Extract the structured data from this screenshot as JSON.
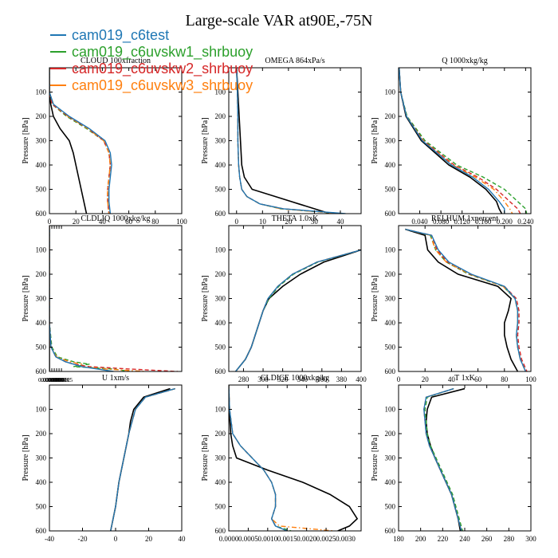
{
  "figure": {
    "title": "Large-scale VAR at90E,-75N",
    "legend": [
      {
        "label": "cam019_c6test",
        "color": "#1f77b4",
        "dash": "solid"
      },
      {
        "label": "cam019_c6uvskw1_shrbuoy",
        "color": "#2ca02c",
        "dash": "dashed"
      },
      {
        "label": "cam019_c6uvskw2_shrbuoy",
        "color": "#d62728",
        "dash": "dashed"
      },
      {
        "label": "cam019_c6uvskw3_shrbuoy",
        "color": "#ff7f0e",
        "dash": "dashdot"
      }
    ],
    "reference_color": "#000000"
  },
  "chart_data": [
    {
      "type": "line",
      "title": "CLOUD 100xfraction",
      "ylabel": "Pressure [hPa]",
      "xlim": [
        0,
        100
      ],
      "ylim": [
        600,
        0
      ],
      "yticks": [
        100,
        200,
        300,
        400,
        500,
        600
      ],
      "xticks": [
        "0",
        "20",
        "40",
        "60",
        "80",
        "100"
      ],
      "pressure": [
        0,
        100,
        150,
        200,
        250,
        300,
        350,
        400,
        450,
        500,
        550,
        600
      ],
      "series": [
        {
          "name": "cam019_c6test",
          "values": [
            0,
            0,
            3,
            15,
            30,
            42,
            46,
            47,
            46,
            45,
            45,
            46
          ]
        },
        {
          "name": "cam019_c6uvskw1_shrbuoy",
          "values": [
            0,
            0,
            2,
            13,
            28,
            41,
            45,
            46,
            45,
            44,
            44,
            45
          ]
        },
        {
          "name": "cam019_c6uvskw2_shrbuoy",
          "values": [
            0,
            0,
            2,
            14,
            29,
            41,
            45,
            46,
            45,
            44,
            44,
            45
          ]
        },
        {
          "name": "cam019_c6uvskw3_shrbuoy",
          "values": [
            0,
            0,
            3,
            14,
            29,
            41,
            45,
            46,
            45,
            44,
            44,
            45
          ]
        },
        {
          "values": [
            0,
            0,
            1,
            3,
            8,
            15,
            18,
            20,
            22,
            24,
            26,
            28
          ]
        }
      ]
    },
    {
      "type": "line",
      "title": "OMEGA 864xPa/s",
      "ylabel": "Pressure [hPa]",
      "xlim": [
        -3,
        48
      ],
      "ylim": [
        600,
        0
      ],
      "yticks": [
        100,
        200,
        300,
        400,
        500,
        600
      ],
      "xticks": [
        "0",
        "10",
        "20",
        "30",
        "40"
      ],
      "pressure": [
        0,
        100,
        200,
        300,
        400,
        450,
        500,
        530,
        560,
        580,
        600
      ],
      "series": [
        {
          "name": "cam019_c6test",
          "values": [
            0,
            0.3,
            0.5,
            0.5,
            0.8,
            1.2,
            2,
            4,
            9,
            18,
            42
          ]
        },
        {
          "name": "cam019_c6uvskw1_shrbuoy",
          "values": [
            0,
            0.3,
            0.5,
            0.5,
            0.8,
            1.2,
            2,
            4,
            9,
            17,
            40
          ]
        },
        {
          "name": "cam019_c6uvskw2_shrbuoy",
          "values": [
            0,
            0.3,
            0.5,
            0.5,
            0.8,
            1.2,
            2,
            4,
            9,
            18,
            41
          ]
        },
        {
          "name": "cam019_c6uvskw3_shrbuoy",
          "values": [
            0,
            0.3,
            0.5,
            0.5,
            0.8,
            1.2,
            2,
            4,
            9,
            17,
            40
          ]
        },
        {
          "values": [
            0,
            0.5,
            1,
            1.5,
            2,
            3,
            6,
            15,
            24,
            30,
            36
          ]
        }
      ]
    },
    {
      "type": "line",
      "title": "Q 1000xkg/kg",
      "ylabel": "Pressure [hPa]",
      "xlim": [
        0,
        0.25
      ],
      "ylim": [
        600,
        0
      ],
      "yticks": [
        100,
        200,
        300,
        400,
        500,
        600
      ],
      "xticks": [
        "0.040",
        "0.080",
        "0.120",
        "0.160",
        "0.200",
        "0.240"
      ],
      "pressure": [
        0,
        100,
        200,
        300,
        400,
        450,
        500,
        550,
        580,
        600
      ],
      "series": [
        {
          "name": "cam019_c6test",
          "values": [
            0.001,
            0.004,
            0.015,
            0.045,
            0.1,
            0.14,
            0.17,
            0.19,
            0.2,
            0.2
          ]
        },
        {
          "name": "cam019_c6uvskw1_shrbuoy",
          "values": [
            0.001,
            0.004,
            0.016,
            0.05,
            0.11,
            0.16,
            0.2,
            0.225,
            0.24,
            0.242
          ]
        },
        {
          "name": "cam019_c6uvskw2_shrbuoy",
          "values": [
            0.001,
            0.004,
            0.015,
            0.047,
            0.105,
            0.15,
            0.185,
            0.21,
            0.225,
            0.23
          ]
        },
        {
          "name": "cam019_c6uvskw3_shrbuoy",
          "values": [
            0.001,
            0.004,
            0.015,
            0.046,
            0.102,
            0.145,
            0.18,
            0.2,
            0.21,
            0.215
          ]
        },
        {
          "values": [
            0.001,
            0.004,
            0.014,
            0.043,
            0.095,
            0.135,
            0.165,
            0.185,
            0.19,
            0.195
          ]
        }
      ]
    },
    {
      "type": "line",
      "title": "CLDLIQ 1000xkg/kg",
      "ylabel": "Pressure [hPa]",
      "xlim": [
        0,
        0.000165
      ],
      "ylim": [
        600,
        0
      ],
      "yticks": [
        100,
        200,
        300,
        400,
        500,
        600
      ],
      "xticks": [
        "0.000000",
        "0.000003",
        "0.000006",
        "0.000009",
        "0.000012",
        "0.000015"
      ],
      "pressure": [
        0,
        400,
        500,
        540,
        560,
        570,
        580,
        590,
        600
      ],
      "series": [
        {
          "name": "cam019_c6test",
          "values": [
            0,
            0,
            2e-06,
            8e-06,
            2e-05,
            3e-05,
            4e-05,
            6e-05,
            8e-05
          ]
        },
        {
          "name": "cam019_c6uvskw1_shrbuoy",
          "values": [
            0,
            0,
            3e-06,
            1e-05,
            3e-05,
            5e-05,
            3e-05,
            8e-05,
            0.0001
          ]
        },
        {
          "name": "cam019_c6uvskw2_shrbuoy",
          "values": [
            0,
            0,
            2e-06,
            8e-06,
            2e-05,
            3e-05,
            5e-05,
            0.0001,
            0.00016
          ]
        },
        {
          "name": "cam019_c6uvskw3_shrbuoy",
          "values": [
            0,
            0,
            2e-06,
            9e-06,
            2.5e-05,
            4e-05,
            4e-05,
            7e-05,
            0.00012
          ]
        },
        {
          "values": [
            0,
            0,
            0,
            0,
            0,
            0,
            0,
            0,
            0
          ]
        }
      ]
    },
    {
      "type": "line",
      "title": "THETA 1.0xK",
      "ylabel": "Pressure [hPa]",
      "xlim": [
        265,
        400
      ],
      "ylim": [
        600,
        0
      ],
      "yticks": [
        100,
        200,
        300,
        400,
        500,
        600
      ],
      "xticks": [
        "280",
        "300",
        "320",
        "340",
        "360",
        "380",
        "400"
      ],
      "pressure": [
        100,
        150,
        200,
        250,
        300,
        350,
        400,
        450,
        500,
        550,
        600
      ],
      "series": [
        {
          "name": "cam019_c6test",
          "values": [
            400,
            355,
            330,
            315,
            305,
            300,
            296,
            292,
            288,
            282,
            272
          ]
        },
        {
          "name": "cam019_c6uvskw1_shrbuoy",
          "values": [
            400,
            356,
            331,
            316,
            306,
            300,
            296,
            292,
            288,
            282,
            272
          ]
        },
        {
          "name": "cam019_c6uvskw2_shrbuoy",
          "values": [
            400,
            355,
            330,
            315,
            305,
            300,
            296,
            292,
            288,
            282,
            272
          ]
        },
        {
          "name": "cam019_c6uvskw3_shrbuoy",
          "values": [
            400,
            355,
            330,
            315,
            305,
            300,
            296,
            292,
            288,
            282,
            272
          ]
        },
        {
          "values": [
            400,
            362,
            338,
            320,
            306,
            300,
            296,
            292,
            288,
            282,
            272
          ]
        }
      ]
    },
    {
      "type": "line",
      "title": "RELHUM 1xpercent",
      "ylabel": "Pressure [hPa]",
      "xlim": [
        0,
        100
      ],
      "ylim": [
        600,
        0
      ],
      "yticks": [
        100,
        200,
        300,
        400,
        500,
        600
      ],
      "xticks": [
        "0",
        "20",
        "40",
        "60",
        "80",
        "100"
      ],
      "pressure": [
        15,
        40,
        100,
        150,
        200,
        250,
        300,
        350,
        400,
        450,
        500,
        550,
        600
      ],
      "series": [
        {
          "name": "cam019_c6test",
          "values": [
            5,
            25,
            30,
            38,
            55,
            80,
            88,
            90,
            90,
            89,
            90,
            92,
            96
          ]
        },
        {
          "name": "cam019_c6uvskw1_shrbuoy",
          "values": [
            5,
            24,
            28,
            36,
            53,
            79,
            88,
            90,
            90,
            89,
            90,
            92,
            96
          ]
        },
        {
          "name": "cam019_c6uvskw2_shrbuoy",
          "values": [
            5,
            25,
            29,
            37,
            54,
            80,
            89,
            91,
            91,
            90,
            91,
            93,
            97
          ]
        },
        {
          "name": "cam019_c6uvskw3_shrbuoy",
          "values": [
            5,
            24,
            28,
            36,
            54,
            79,
            88,
            90,
            90,
            89,
            90,
            92,
            96
          ]
        },
        {
          "values": [
            5,
            20,
            22,
            30,
            45,
            75,
            85,
            83,
            80,
            80,
            82,
            85,
            90
          ]
        }
      ]
    },
    {
      "type": "line",
      "title": "U 1xm/s",
      "ylabel": "Pressure [hPa]",
      "xlim": [
        -40,
        40
      ],
      "ylim": [
        600,
        0
      ],
      "yticks": [
        100,
        200,
        300,
        400,
        500,
        600
      ],
      "xticks": [
        "-40",
        "-20",
        "0",
        "20",
        "40"
      ],
      "pressure": [
        15,
        50,
        100,
        150,
        200,
        300,
        400,
        500,
        600
      ],
      "series": [
        {
          "name": "cam019_c6test",
          "values": [
            36,
            18,
            12,
            10,
            8,
            5,
            2,
            0,
            -3
          ]
        },
        {
          "name": "cam019_c6uvskw1_shrbuoy",
          "values": [
            36,
            18,
            12,
            10,
            8,
            5,
            2,
            0,
            -3
          ]
        },
        {
          "name": "cam019_c6uvskw2_shrbuoy",
          "values": [
            36,
            18,
            12,
            10,
            8,
            5,
            2,
            0,
            -3
          ]
        },
        {
          "name": "cam019_c6uvskw3_shrbuoy",
          "values": [
            36,
            18,
            12,
            10,
            8,
            5,
            2,
            0,
            -3
          ]
        },
        {
          "values": [
            33,
            17,
            11,
            9,
            8,
            5,
            2,
            0,
            -3
          ]
        }
      ]
    },
    {
      "type": "line",
      "title": "CLDICE 1000xkg/kg",
      "ylabel": "Pressure [hPa]",
      "xlim": [
        0,
        0.0034
      ],
      "ylim": [
        600,
        0
      ],
      "yticks": [
        100,
        200,
        300,
        400,
        500,
        600
      ],
      "xticks": [
        "0.0000",
        "0.0005",
        "0.0010",
        "0.0015",
        "0.0020",
        "0.0025",
        "0.0030"
      ],
      "pressure": [
        0,
        100,
        200,
        250,
        300,
        350,
        400,
        450,
        500,
        550,
        580,
        600
      ],
      "series": [
        {
          "name": "cam019_c6test",
          "values": [
            0,
            2e-05,
            0.0001,
            0.0003,
            0.0006,
            0.0009,
            0.0011,
            0.0012,
            0.0012,
            0.0011,
            0.0012,
            0.0015
          ]
        },
        {
          "name": "cam019_c6uvskw1_shrbuoy",
          "values": [
            0,
            2e-05,
            0.0001,
            0.0003,
            0.0006,
            0.0009,
            0.0011,
            0.0012,
            0.0012,
            0.0011,
            0.0012,
            0.0016
          ]
        },
        {
          "name": "cam019_c6uvskw2_shrbuoy",
          "values": [
            0,
            2e-05,
            0.0001,
            0.0003,
            0.0006,
            0.0009,
            0.0011,
            0.0012,
            0.0012,
            0.0011,
            0.0012,
            0.0015
          ]
        },
        {
          "name": "cam019_c6uvskw3_shrbuoy",
          "values": [
            0,
            2e-05,
            0.0001,
            0.0003,
            0.0006,
            0.0009,
            0.0011,
            0.0012,
            0.0012,
            0.0011,
            0.0013,
            0.0027
          ]
        },
        {
          "values": [
            0,
            1e-05,
            5e-05,
            0.0001,
            0.0002,
            0.001,
            0.0019,
            0.0026,
            0.0031,
            0.0033,
            0.0031,
            0.0028
          ]
        }
      ]
    },
    {
      "type": "line",
      "title": "T 1xK",
      "ylabel": "Pressure [hPa]",
      "xlim": [
        180,
        300
      ],
      "ylim": [
        600,
        0
      ],
      "yticks": [
        100,
        200,
        300,
        400,
        500,
        600
      ],
      "xticks": [
        "180",
        "200",
        "220",
        "240",
        "260",
        "280",
        "300"
      ],
      "pressure": [
        15,
        50,
        100,
        150,
        200,
        250,
        300,
        350,
        400,
        450,
        500,
        550,
        600
      ],
      "series": [
        {
          "name": "cam019_c6test",
          "values": [
            230,
            205,
            203,
            204,
            205,
            208,
            213,
            218,
            223,
            228,
            231,
            234,
            237
          ]
        },
        {
          "name": "cam019_c6uvskw1_shrbuoy",
          "values": [
            230,
            206,
            204,
            205,
            206,
            209,
            214,
            219,
            224,
            229,
            232,
            235,
            238
          ]
        },
        {
          "name": "cam019_c6uvskw2_shrbuoy",
          "values": [
            230,
            205,
            203,
            204,
            205,
            208,
            213,
            218,
            223,
            228,
            231,
            234,
            237
          ]
        },
        {
          "name": "cam019_c6uvskw3_shrbuoy",
          "values": [
            230,
            205,
            203,
            204,
            205,
            208,
            213,
            218,
            223,
            228,
            231,
            234,
            237
          ]
        },
        {
          "values": [
            240,
            210,
            206,
            205,
            206,
            209,
            213,
            218,
            223,
            228,
            231,
            234,
            236
          ]
        }
      ]
    }
  ]
}
